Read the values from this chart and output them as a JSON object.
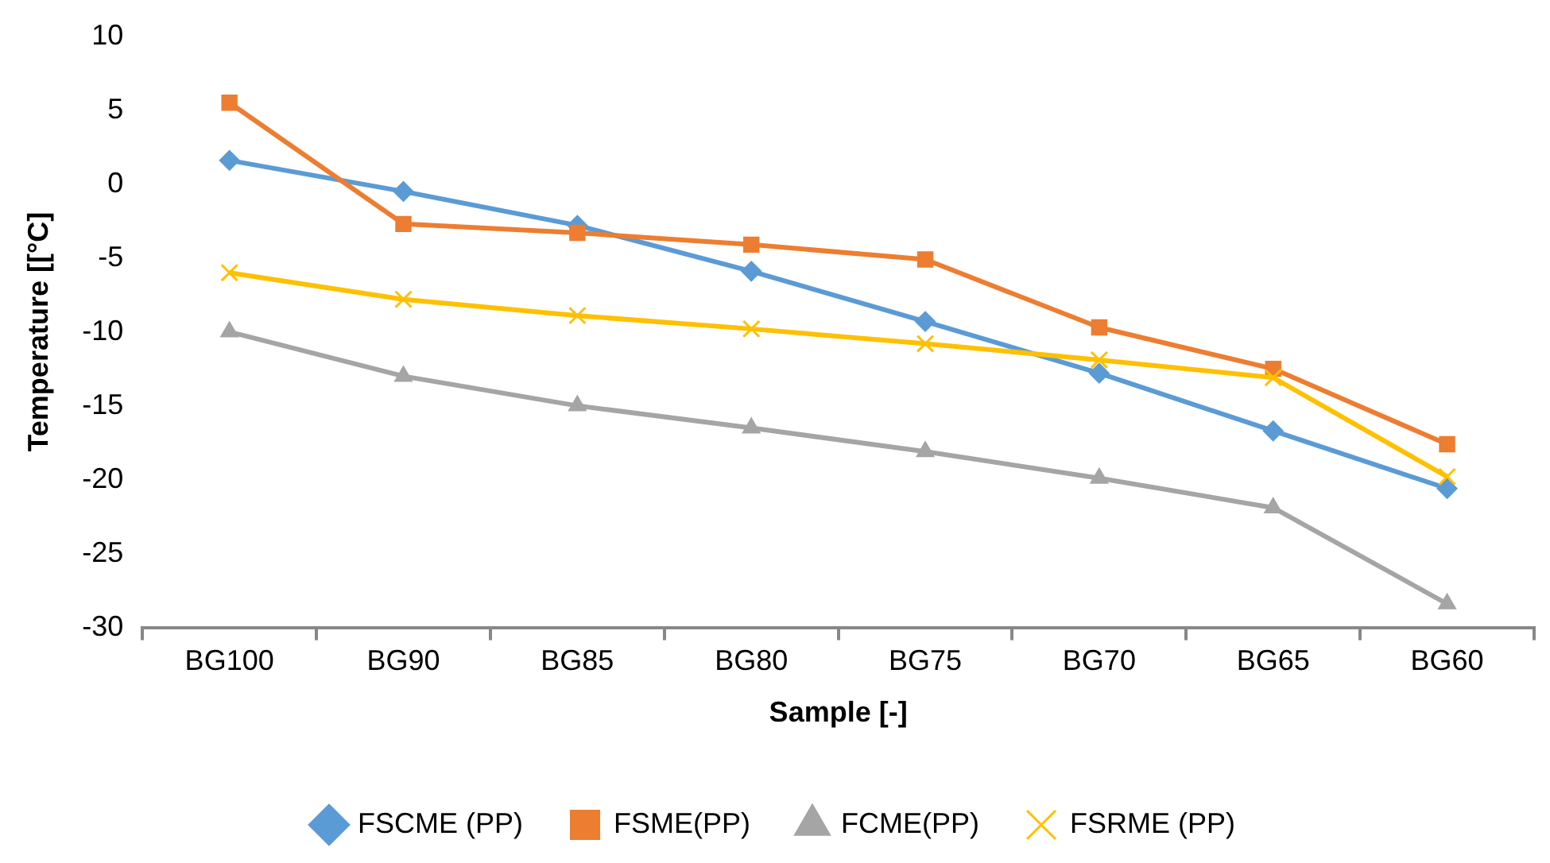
{
  "chart_data": {
    "type": "line",
    "xlabel": "Sample [-]",
    "ylabel": "Temperature [[°C]",
    "categories": [
      "BG100",
      "BG90",
      "BG85",
      "BG80",
      "BG75",
      "BG70",
      "BG65",
      "BG60"
    ],
    "series": [
      {
        "name": "FSCME (PP)",
        "color": "#5b9bd5",
        "marker": "diamond",
        "values": [
          1.6,
          -0.5,
          -2.8,
          -5.9,
          -9.3,
          -12.8,
          -16.7,
          -20.6
        ]
      },
      {
        "name": "FSME(PP)",
        "color": "#ed7d31",
        "marker": "square",
        "values": [
          5.5,
          -2.7,
          -3.3,
          -4.1,
          -5.1,
          -9.7,
          -12.5,
          -17.6
        ]
      },
      {
        "name": "FCME(PP)",
        "color": "#a5a5a5",
        "marker": "triangle",
        "values": [
          -10,
          -13,
          -15,
          -16.5,
          -18.1,
          -19.9,
          -21.9,
          -28.4
        ]
      },
      {
        "name": "FSRME (PP)",
        "color": "#ffc000",
        "marker": "cross",
        "values": [
          -6,
          -7.8,
          -8.9,
          -9.8,
          -10.8,
          -11.9,
          -13.1,
          -19.8
        ]
      }
    ],
    "ylim": [
      -30,
      10
    ],
    "yticks": [
      -30,
      -25,
      -20,
      -15,
      -10,
      -5,
      0,
      5,
      10
    ],
    "grid": false,
    "legend": "bottom"
  }
}
